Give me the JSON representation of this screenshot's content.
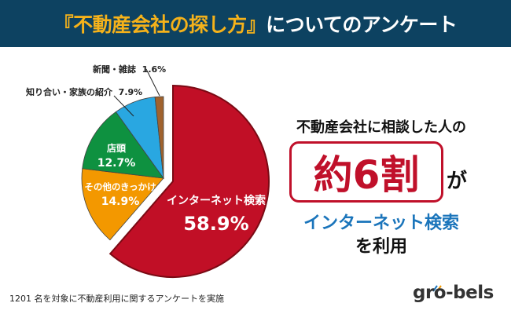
{
  "header": {
    "title_highlight": "『不動産会社の探し方』",
    "title_rest": "についてのアンケート"
  },
  "chart_data": {
    "type": "pie",
    "start": "top",
    "direction": "clockwise",
    "slices": [
      {
        "label": "インターネット検索",
        "value": 58.9,
        "display": "58.9%",
        "color": "#c10f26",
        "exploded": true
      },
      {
        "label": "その他のきっかけ",
        "value": 14.9,
        "display": "14.9%",
        "color": "#f39800"
      },
      {
        "label": "店頭",
        "value": 12.7,
        "display": "12.7%",
        "color": "#0e9140"
      },
      {
        "label": "知り合い・家族の紹介",
        "value": 7.9,
        "display": "7.9%",
        "color": "#29a7e1"
      },
      {
        "label": "新聞・雑誌",
        "value": 1.6,
        "display": "1.6%",
        "color": "#a0622d"
      }
    ]
  },
  "message": {
    "line1": "不動産会社に相談した人の",
    "highlight": "約6割",
    "particle": "が",
    "line3": "インターネット検索",
    "line4": "を利用"
  },
  "footnote": "1201 名を対象に不動産利用に関するアンケートを実施",
  "logo": "gro-bels"
}
